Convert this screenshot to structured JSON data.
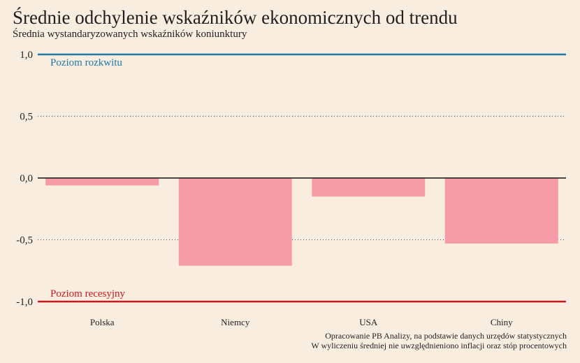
{
  "chart_data": {
    "type": "bar",
    "title": "Średnie odchylenie wskaźników ekonomicznych od trendu",
    "subtitle": "Średnia wystandaryzowanych wskaźników koniunktury",
    "categories": [
      "Polska",
      "Niemcy",
      "USA",
      "Chiny"
    ],
    "values": [
      -0.06,
      -0.71,
      -0.15,
      -0.53
    ],
    "ylim": [
      -1.0,
      1.0
    ],
    "yticks": [
      1.0,
      0.5,
      0.0,
      -0.5,
      -1.0
    ],
    "ytick_labels": [
      "1,0",
      "0,5",
      "0,0",
      "-0,5",
      "-1,0"
    ],
    "bar_color": "#f59ca8",
    "grid": true,
    "reference_lines": [
      {
        "value": 1.0,
        "label": "Poziom rozkwitu",
        "color": "#1f78a4"
      },
      {
        "value": -1.0,
        "label": "Poziom recesyjny",
        "color": "#d0161d"
      }
    ],
    "notes": [
      "Opracowanie PB Analizy, na podstawie danych urzędów statystycznych",
      "W wyliczeniu średniej nie uwzględnieniono inflacji oraz stóp procentowych"
    ]
  }
}
